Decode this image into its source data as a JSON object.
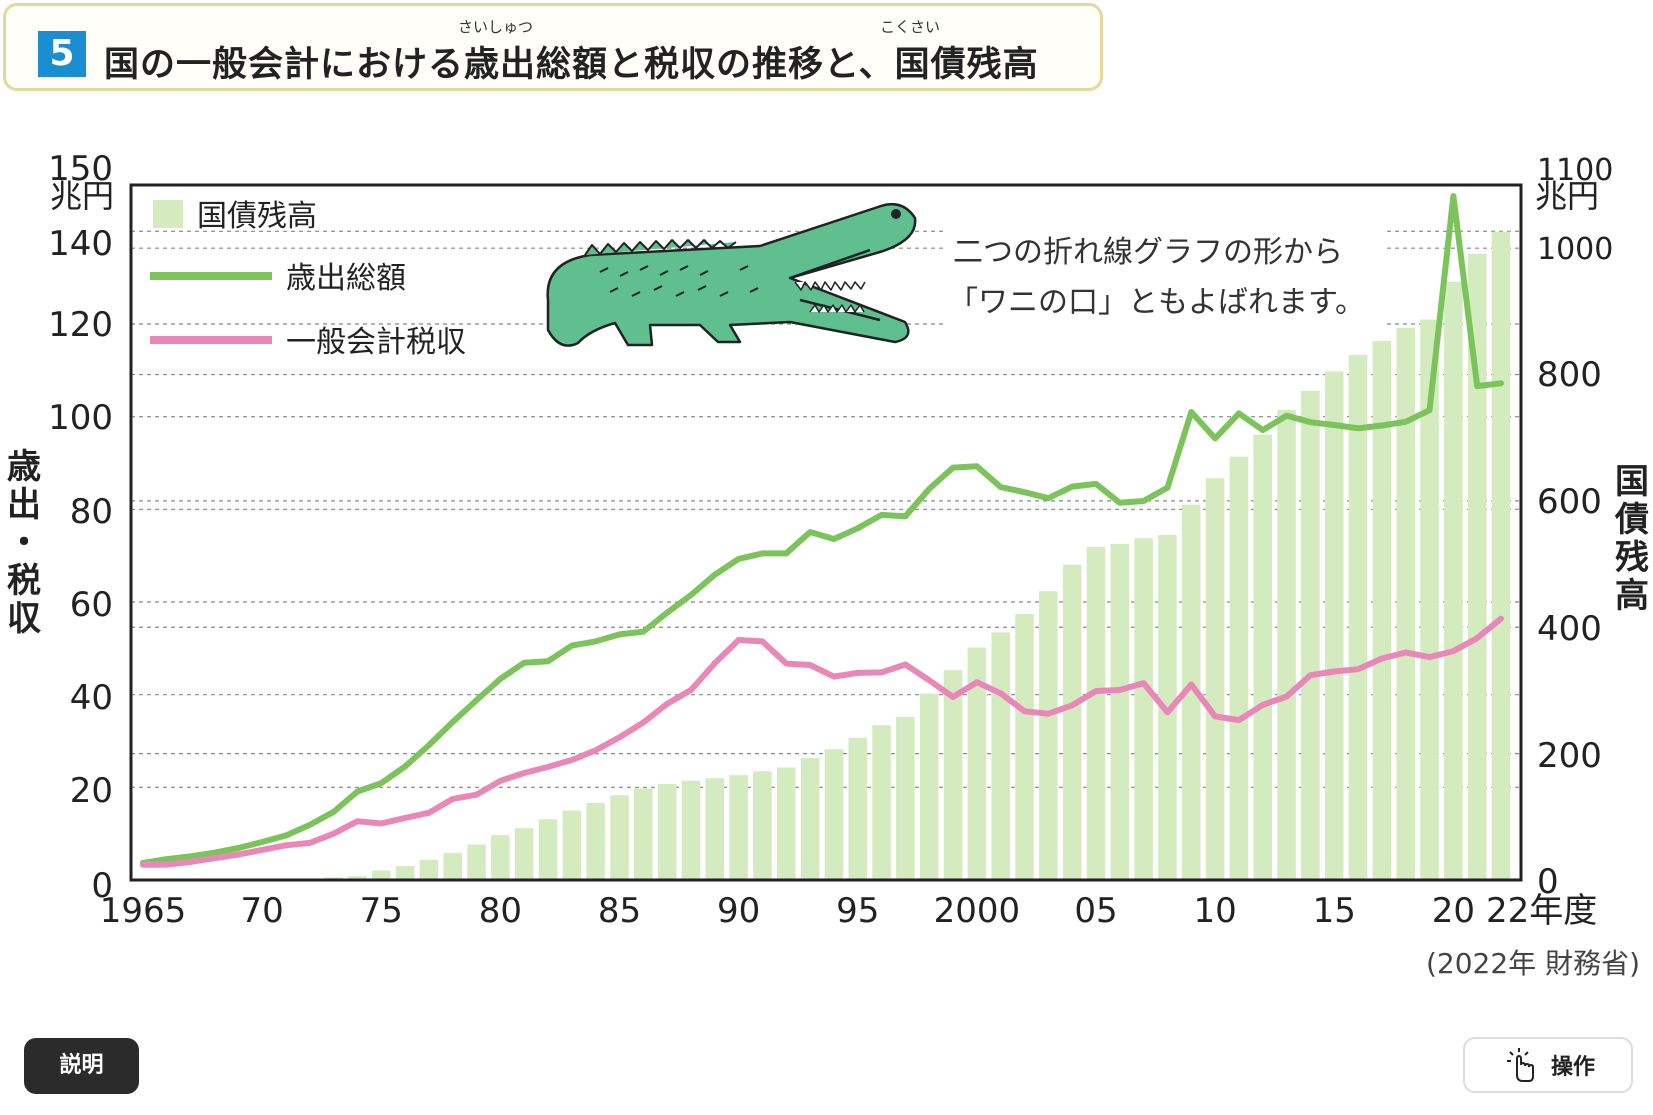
{
  "title": {
    "number": "5",
    "text": "国の一般会計における歳出総額と税収の推移と、国債残高",
    "ruby_1": "さいしゅつ",
    "ruby_2": "こくさい"
  },
  "note": {
    "line1": "二つの折れ線グラフの形から",
    "line2": "「ワニの口」ともよばれます。"
  },
  "source": "(2022年 財務省)",
  "buttons": {
    "description": "説明",
    "operation": "操作"
  },
  "colors": {
    "debt_bar": "#d4ebc0",
    "expenditure": "#7cc35c",
    "tax": "#e988b8",
    "title_accent": "#1a8ed1"
  },
  "icons": {
    "crocodile": "crocodile-illustration",
    "operation": "tap-hand-icon"
  },
  "chart_data": {
    "type": "line",
    "x": [
      1965,
      1966,
      1967,
      1968,
      1969,
      1970,
      1971,
      1972,
      1973,
      1974,
      1975,
      1976,
      1977,
      1978,
      1979,
      1980,
      1981,
      1982,
      1983,
      1984,
      1985,
      1986,
      1987,
      1988,
      1989,
      1990,
      1991,
      1992,
      1993,
      1994,
      1995,
      1996,
      1997,
      1998,
      1999,
      2000,
      2001,
      2002,
      2003,
      2004,
      2005,
      2006,
      2007,
      2008,
      2009,
      2010,
      2011,
      2012,
      2013,
      2014,
      2015,
      2016,
      2017,
      2018,
      2019,
      2020,
      2021,
      2022
    ],
    "x_tick_labels": [
      "1965",
      "70",
      "75",
      "80",
      "85",
      "90",
      "95",
      "2000",
      "05",
      "10",
      "15",
      "20",
      "22年度"
    ],
    "y_left": {
      "unit": "兆円",
      "label": "歳出・税収",
      "range": [
        0,
        150
      ],
      "ticks": [
        0,
        20,
        40,
        60,
        80,
        100,
        120,
        140,
        150
      ]
    },
    "y_right": {
      "unit": "兆円",
      "label": "国債残高",
      "range": [
        0,
        1100
      ],
      "ticks": [
        0,
        200,
        400,
        600,
        800,
        1000,
        1100
      ]
    },
    "series": [
      {
        "name": "国債残高",
        "kind": "bar",
        "axis": "right",
        "values": [
          0,
          0,
          0,
          0,
          0,
          0,
          0,
          2,
          4,
          6,
          15,
          22,
          32,
          43,
          56,
          71,
          82,
          96,
          110,
          122,
          134,
          145,
          152,
          157,
          161,
          166,
          172,
          178,
          193,
          207,
          225,
          245,
          258,
          295,
          332,
          368,
          392,
          421,
          457,
          499,
          527,
          532,
          541,
          546,
          594,
          636,
          670,
          705,
          744,
          774,
          805,
          831,
          853,
          874,
          887,
          947,
          991,
          1026
        ]
      },
      {
        "name": "歳出総額",
        "kind": "line",
        "axis": "left",
        "values": [
          3.7,
          4.5,
          5.1,
          5.9,
          6.9,
          8.2,
          9.6,
          11.9,
          14.7,
          19.1,
          20.9,
          24.5,
          29.1,
          34.1,
          38.8,
          43.4,
          46.9,
          47.2,
          50.6,
          51.5,
          53.0,
          53.6,
          57.7,
          61.5,
          65.9,
          69.3,
          70.5,
          70.5,
          75.1,
          73.6,
          75.9,
          78.8,
          78.5,
          84.4,
          89.0,
          89.3,
          84.8,
          83.7,
          82.4,
          84.9,
          85.5,
          81.4,
          81.8,
          84.7,
          101.0,
          95.3,
          100.7,
          97.1,
          100.2,
          98.8,
          98.2,
          97.5,
          98.1,
          98.9,
          101.4,
          147.6,
          106.6,
          107.2
        ]
      },
      {
        "name": "一般会計税収",
        "kind": "line",
        "axis": "left",
        "values": [
          3.3,
          3.3,
          3.9,
          4.7,
          5.5,
          6.5,
          7.5,
          8.0,
          10.0,
          12.7,
          12.2,
          13.4,
          14.5,
          17.5,
          18.4,
          21.4,
          23.1,
          24.4,
          25.9,
          28.0,
          30.8,
          34.0,
          38.0,
          41.0,
          46.8,
          51.8,
          51.5,
          46.7,
          46.4,
          43.9,
          44.7,
          44.8,
          46.5,
          43.1,
          39.5,
          42.7,
          40.3,
          36.4,
          35.9,
          37.7,
          40.8,
          41.0,
          42.5,
          36.2,
          42.2,
          35.3,
          34.5,
          37.8,
          39.6,
          44.2,
          45.0,
          45.5,
          47.8,
          49.1,
          48.1,
          49.4,
          52.2,
          56.4
        ]
      }
    ],
    "legend": "top-left",
    "grid": "horizontal dashed"
  }
}
